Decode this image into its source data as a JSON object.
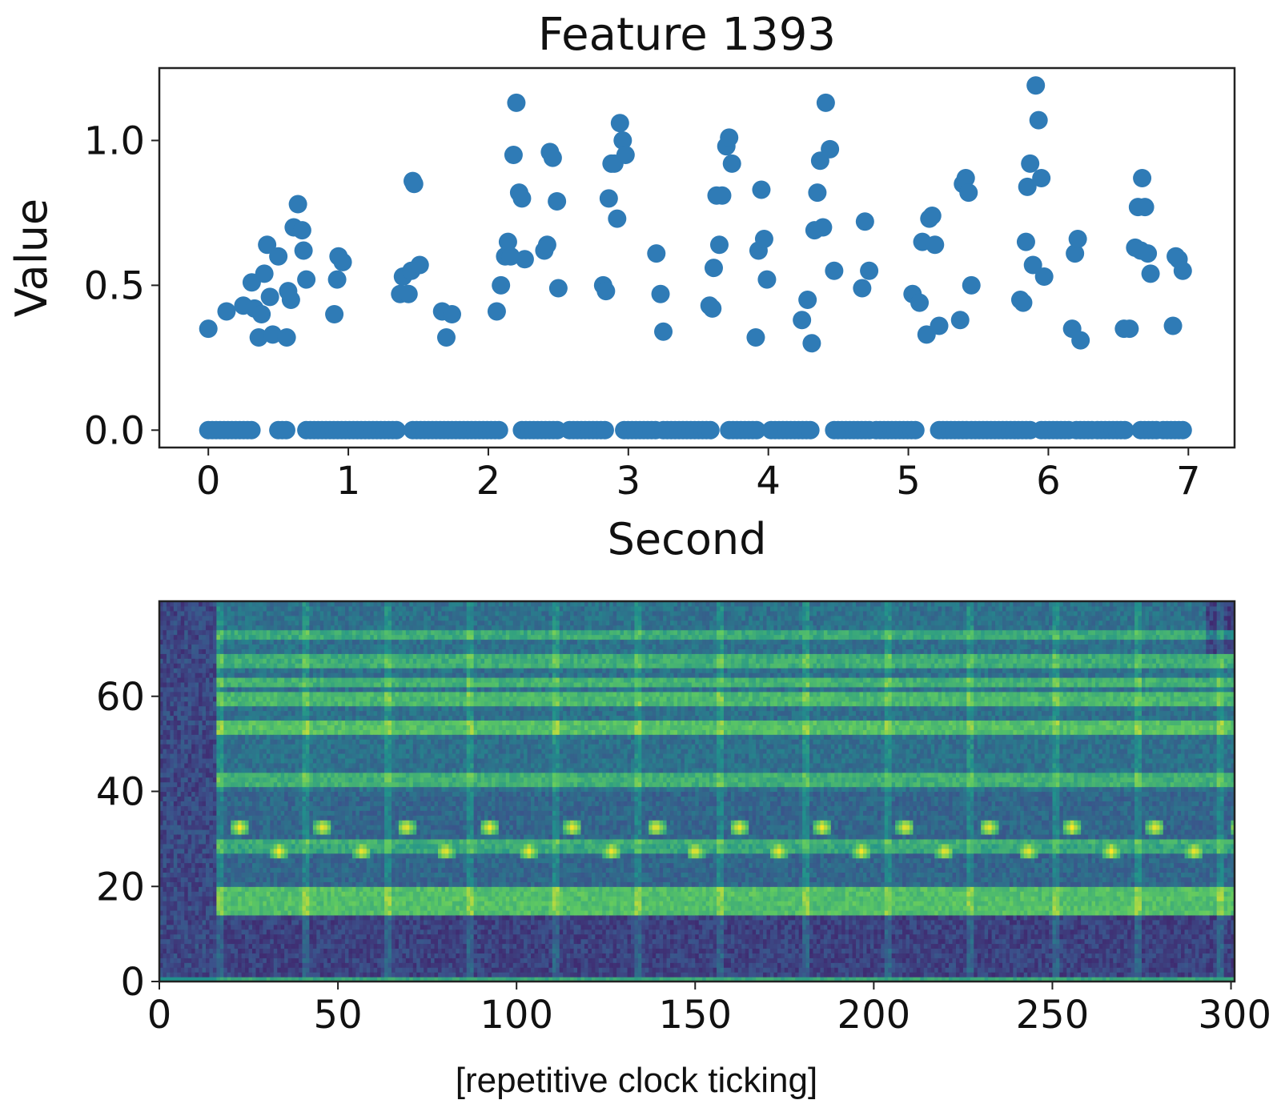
{
  "chart_data": [
    {
      "type": "scatter",
      "title": "Feature 1393",
      "xlabel": "Second",
      "ylabel": "Value",
      "xlim": [
        -0.35,
        7.33
      ],
      "ylim": [
        -0.06,
        1.25
      ],
      "xticks": [
        "0",
        "1",
        "2",
        "3",
        "4",
        "5",
        "6",
        "7"
      ],
      "yticks": [
        "0.0",
        "0.5",
        "1.0"
      ],
      "grid": false,
      "color": "#2f7bb6",
      "zero_runs": [
        [
          0.0,
          0.33
        ],
        [
          0.5,
          0.57
        ],
        [
          0.7,
          1.37
        ],
        [
          1.46,
          2.1
        ],
        [
          2.24,
          2.5
        ],
        [
          2.58,
          2.85
        ],
        [
          2.97,
          3.2
        ],
        [
          3.25,
          3.6
        ],
        [
          3.72,
          3.94
        ],
        [
          4.02,
          4.3
        ],
        [
          4.47,
          4.74
        ],
        [
          4.77,
          5.05
        ],
        [
          5.22,
          5.42
        ],
        [
          5.45,
          5.87
        ],
        [
          5.95,
          6.15
        ],
        [
          6.2,
          6.32
        ],
        [
          6.35,
          6.55
        ],
        [
          6.66,
          6.78
        ],
        [
          6.82,
          6.98
        ]
      ],
      "points": [
        [
          0.0,
          0.35
        ],
        [
          0.13,
          0.41
        ],
        [
          0.25,
          0.43
        ],
        [
          0.31,
          0.51
        ],
        [
          0.33,
          0.42
        ],
        [
          0.36,
          0.32
        ],
        [
          0.38,
          0.4
        ],
        [
          0.4,
          0.54
        ],
        [
          0.42,
          0.64
        ],
        [
          0.44,
          0.46
        ],
        [
          0.46,
          0.33
        ],
        [
          0.5,
          0.6
        ],
        [
          0.56,
          0.32
        ],
        [
          0.57,
          0.48
        ],
        [
          0.59,
          0.45
        ],
        [
          0.61,
          0.7
        ],
        [
          0.64,
          0.78
        ],
        [
          0.67,
          0.69
        ],
        [
          0.68,
          0.62
        ],
        [
          0.7,
          0.52
        ],
        [
          0.9,
          0.4
        ],
        [
          0.92,
          0.52
        ],
        [
          0.93,
          0.6
        ],
        [
          0.96,
          0.58
        ],
        [
          1.37,
          0.47
        ],
        [
          1.39,
          0.53
        ],
        [
          1.43,
          0.47
        ],
        [
          1.45,
          0.55
        ],
        [
          1.46,
          0.86
        ],
        [
          1.47,
          0.85
        ],
        [
          1.51,
          0.57
        ],
        [
          1.67,
          0.41
        ],
        [
          1.7,
          0.32
        ],
        [
          1.74,
          0.4
        ],
        [
          2.06,
          0.41
        ],
        [
          2.09,
          0.5
        ],
        [
          2.12,
          0.6
        ],
        [
          2.14,
          0.65
        ],
        [
          2.16,
          0.6
        ],
        [
          2.18,
          0.95
        ],
        [
          2.2,
          1.13
        ],
        [
          2.22,
          0.82
        ],
        [
          2.24,
          0.8
        ],
        [
          2.26,
          0.59
        ],
        [
          2.4,
          0.62
        ],
        [
          2.42,
          0.64
        ],
        [
          2.44,
          0.96
        ],
        [
          2.46,
          0.94
        ],
        [
          2.49,
          0.79
        ],
        [
          2.5,
          0.49
        ],
        [
          2.82,
          0.5
        ],
        [
          2.84,
          0.48
        ],
        [
          2.86,
          0.8
        ],
        [
          2.88,
          0.92
        ],
        [
          2.9,
          0.92
        ],
        [
          2.92,
          0.73
        ],
        [
          2.94,
          1.06
        ],
        [
          2.96,
          1.0
        ],
        [
          2.98,
          0.95
        ],
        [
          3.2,
          0.61
        ],
        [
          3.23,
          0.47
        ],
        [
          3.25,
          0.34
        ],
        [
          3.58,
          0.43
        ],
        [
          3.6,
          0.42
        ],
        [
          3.61,
          0.56
        ],
        [
          3.63,
          0.81
        ],
        [
          3.65,
          0.64
        ],
        [
          3.67,
          0.81
        ],
        [
          3.7,
          0.98
        ],
        [
          3.72,
          1.01
        ],
        [
          3.74,
          0.92
        ],
        [
          3.91,
          0.32
        ],
        [
          3.93,
          0.62
        ],
        [
          3.95,
          0.83
        ],
        [
          3.97,
          0.66
        ],
        [
          3.99,
          0.52
        ],
        [
          4.24,
          0.38
        ],
        [
          4.28,
          0.45
        ],
        [
          4.31,
          0.3
        ],
        [
          4.33,
          0.69
        ],
        [
          4.35,
          0.82
        ],
        [
          4.37,
          0.93
        ],
        [
          4.39,
          0.7
        ],
        [
          4.41,
          1.13
        ],
        [
          4.44,
          0.97
        ],
        [
          4.47,
          0.55
        ],
        [
          4.67,
          0.49
        ],
        [
          4.69,
          0.72
        ],
        [
          4.72,
          0.55
        ],
        [
          5.03,
          0.47
        ],
        [
          5.08,
          0.44
        ],
        [
          5.1,
          0.65
        ],
        [
          5.13,
          0.33
        ],
        [
          5.15,
          0.73
        ],
        [
          5.17,
          0.74
        ],
        [
          5.19,
          0.64
        ],
        [
          5.22,
          0.36
        ],
        [
          5.37,
          0.38
        ],
        [
          5.39,
          0.85
        ],
        [
          5.41,
          0.87
        ],
        [
          5.43,
          0.82
        ],
        [
          5.45,
          0.5
        ],
        [
          5.8,
          0.45
        ],
        [
          5.82,
          0.44
        ],
        [
          5.84,
          0.65
        ],
        [
          5.85,
          0.84
        ],
        [
          5.87,
          0.92
        ],
        [
          5.89,
          0.57
        ],
        [
          5.91,
          1.19
        ],
        [
          5.93,
          1.07
        ],
        [
          5.95,
          0.87
        ],
        [
          5.97,
          0.53
        ],
        [
          6.17,
          0.35
        ],
        [
          6.19,
          0.61
        ],
        [
          6.21,
          0.66
        ],
        [
          6.23,
          0.31
        ],
        [
          6.54,
          0.35
        ],
        [
          6.58,
          0.35
        ],
        [
          6.62,
          0.63
        ],
        [
          6.64,
          0.77
        ],
        [
          6.66,
          0.62
        ],
        [
          6.67,
          0.87
        ],
        [
          6.69,
          0.77
        ],
        [
          6.71,
          0.61
        ],
        [
          6.73,
          0.54
        ],
        [
          6.89,
          0.36
        ],
        [
          6.91,
          0.6
        ],
        [
          6.93,
          0.59
        ],
        [
          6.96,
          0.55
        ]
      ]
    },
    {
      "type": "heatmap",
      "title": "",
      "xlabel": "",
      "ylabel": "",
      "xlim": [
        0,
        301
      ],
      "ylim": [
        0,
        80
      ],
      "xticks": [
        "0",
        "50",
        "100",
        "150",
        "200",
        "250",
        "300"
      ],
      "yticks": [
        "0",
        "20",
        "40",
        "60"
      ],
      "colormap": [
        "#440154",
        "#3b528b",
        "#21918c",
        "#5ec962",
        "#fde725"
      ],
      "columns": 301,
      "rows": 80,
      "onset_frame": 16,
      "tick_period_frames": 23.3,
      "bright_bands": [
        {
          "rows": [
            14,
            19
          ],
          "intensity": 0.68
        },
        {
          "rows": [
            27,
            28
          ],
          "intensity": 0.48
        },
        {
          "rows": [
            29,
            29
          ],
          "intensity": 0.55
        },
        {
          "rows": [
            41,
            43
          ],
          "intensity": 0.48
        },
        {
          "rows": [
            52,
            54
          ],
          "intensity": 0.62
        },
        {
          "rows": [
            58,
            60
          ],
          "intensity": 0.55
        },
        {
          "rows": [
            62,
            63
          ],
          "intensity": 0.5
        },
        {
          "rows": [
            66,
            68
          ],
          "intensity": 0.47
        },
        {
          "rows": [
            72,
            73
          ],
          "intensity": 0.44
        }
      ],
      "tick_events": [
        {
          "row": 32,
          "frame_offset": 6,
          "intensity": 1.0
        },
        {
          "row": 27,
          "frame_offset": 17,
          "intensity": 1.0
        }
      ],
      "caption": "[repetitive clock ticking]"
    }
  ]
}
